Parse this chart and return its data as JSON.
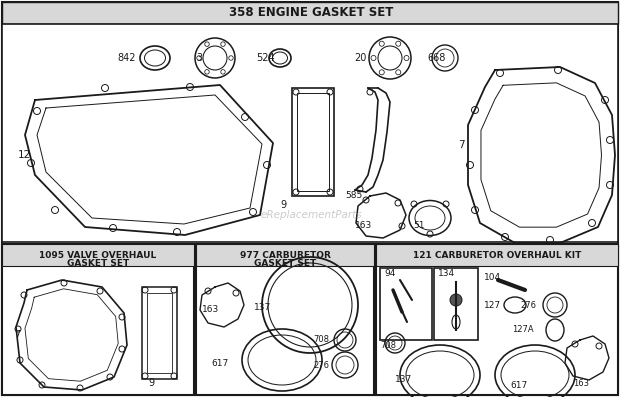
{
  "bg_color": "#ffffff",
  "line_color": "#1a1a1a",
  "title_top": "358 ENGINE GASKET SET",
  "title_bl": "1095 VALVE OVERHAUL\nGASKET SET",
  "title_bm": "977 CARBURETOR\nGASKET SET",
  "title_br": "121 CARBURETOR OVERHAUL KIT",
  "watermark": "eReplacementParts",
  "figsize": [
    6.2,
    3.97
  ],
  "dpi": 100
}
